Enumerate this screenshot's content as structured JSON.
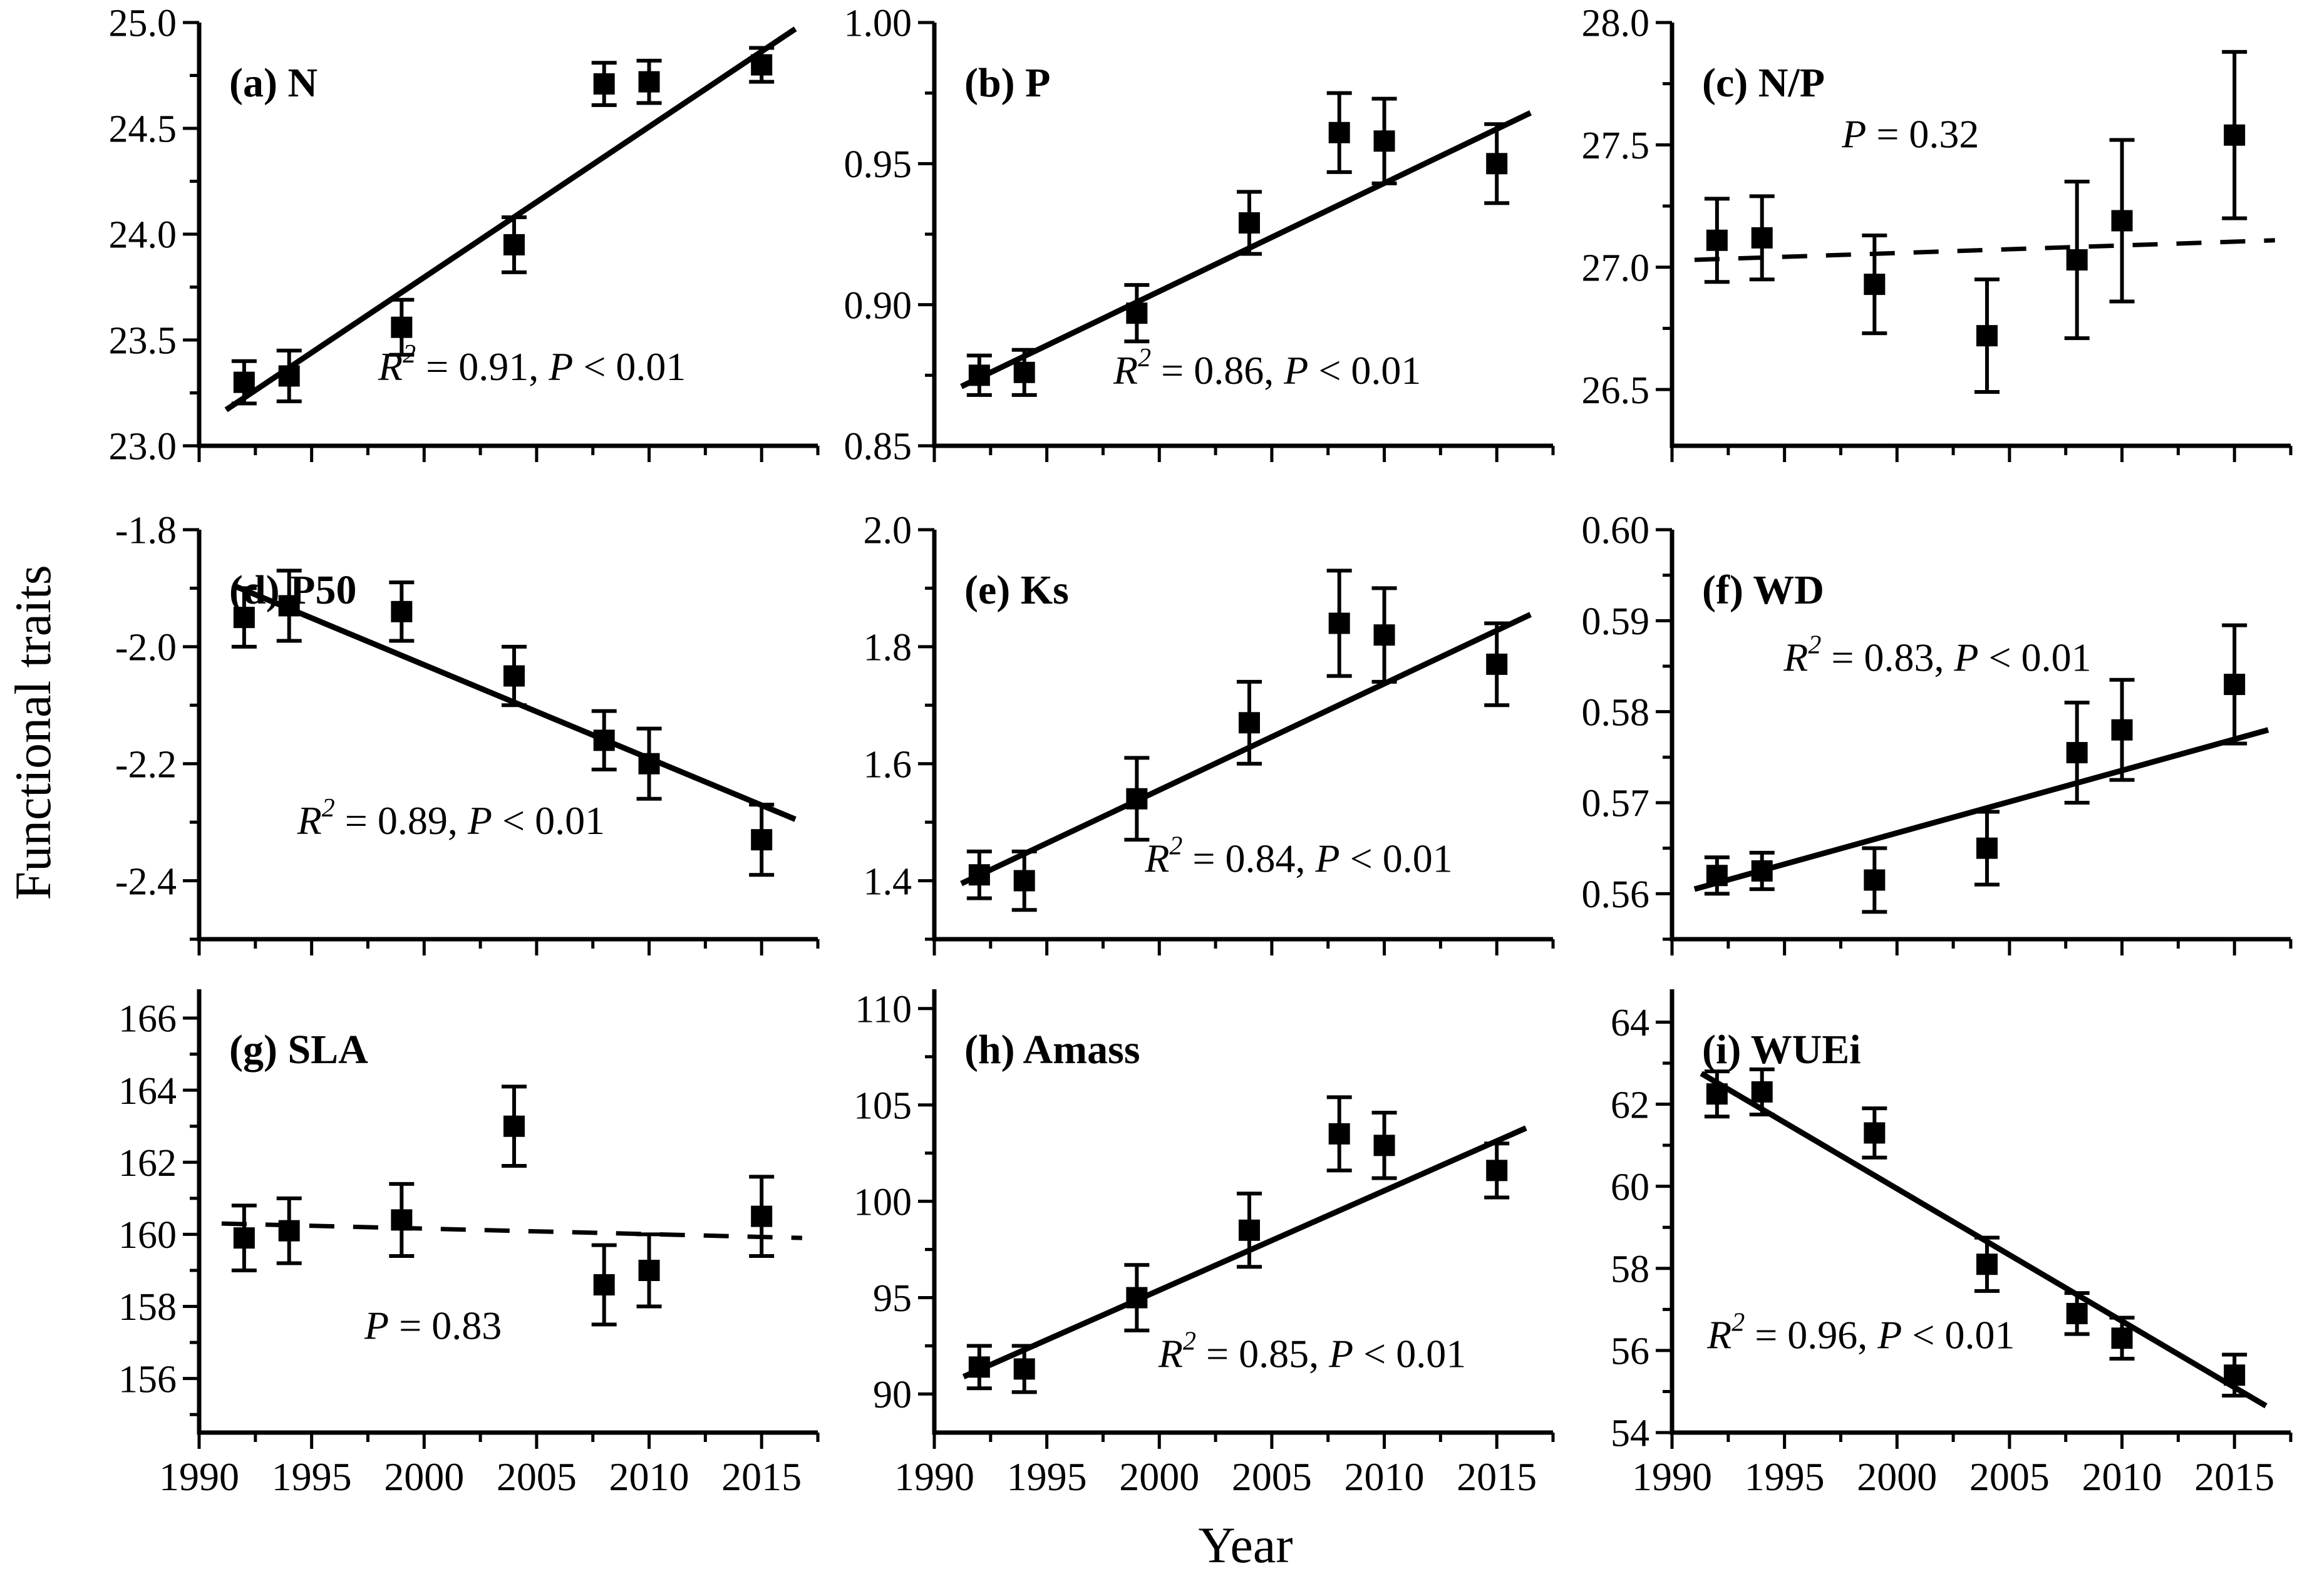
{
  "figure": {
    "y_title": "Functional traits",
    "x_title": "Year"
  },
  "chart_data": {
    "type": "scatter",
    "description": "3x3 grid of functional trait trends over years with mean ± SE error bars and linear regression lines (dashed when non-significant)",
    "x_axis": {
      "title": "Year",
      "lim": [
        1990,
        2017.5
      ],
      "major_ticks": [
        1990,
        1995,
        2000,
        2005,
        2010,
        2015
      ],
      "tick_labels": [
        "1990",
        "1995",
        "2000",
        "2005",
        "2010",
        "2015"
      ],
      "minor_ticks": [
        1992.5,
        1997.5,
        2002.5,
        2007.5,
        2012.5,
        2017.5
      ],
      "years": [
        1992,
        1994,
        1999,
        2004,
        2008,
        2010,
        2015
      ]
    },
    "marker": "filled-square",
    "colors": {
      "foreground": "#000000",
      "background": "#ffffff"
    },
    "panels": [
      {
        "id": "a",
        "label": "(a)  N",
        "y_axis": {
          "lim": [
            23.0,
            25.0
          ],
          "ticks": [
            23.0,
            23.5,
            24.0,
            24.5,
            25.0
          ],
          "tick_labels": [
            "23.0",
            "23.5",
            "24.0",
            "24.5",
            "25.0"
          ],
          "minor_step": 0.25
        },
        "points": {
          "years": [
            1992,
            1994,
            1999,
            2004,
            2008,
            2010,
            2015
          ],
          "values": [
            23.3,
            23.33,
            23.56,
            23.95,
            24.71,
            24.72,
            24.8
          ],
          "errors": [
            0.1,
            0.12,
            0.13,
            0.13,
            0.1,
            0.1,
            0.08
          ]
        },
        "trend": {
          "style": "solid",
          "x1": 1991.2,
          "y1": 23.17,
          "x2": 2016.5,
          "y2": 24.97
        },
        "stats": {
          "text": "R2 = 0.91, P < 0.01",
          "x": 2004.8,
          "y": 23.31,
          "parts": [
            {
              "t": "R",
              "i": true
            },
            {
              "t": "2",
              "i": true,
              "sup": true
            },
            {
              "t": " = 0.91, ",
              "i": false
            },
            {
              "t": "P",
              "i": true
            },
            {
              "t": " < 0.01",
              "i": false
            }
          ]
        }
      },
      {
        "id": "b",
        "label": "(b)  P",
        "y_axis": {
          "lim": [
            0.85,
            1.0
          ],
          "ticks": [
            0.85,
            0.9,
            0.95,
            1.0
          ],
          "tick_labels": [
            "0.85",
            "0.90",
            "0.95",
            "1.00"
          ],
          "minor_step": 0.025
        },
        "points": {
          "years": [
            1992,
            1994,
            1999,
            2004,
            2008,
            2010,
            2015
          ],
          "values": [
            0.875,
            0.876,
            0.897,
            0.929,
            0.961,
            0.958,
            0.95
          ],
          "errors": [
            0.007,
            0.008,
            0.01,
            0.011,
            0.014,
            0.015,
            0.014
          ]
        },
        "trend": {
          "style": "solid",
          "x1": 1991.2,
          "y1": 0.871,
          "x2": 2016.5,
          "y2": 0.968
        },
        "stats": {
          "text": "R2 = 0.86, P < 0.01",
          "x": 2004.8,
          "y": 0.872,
          "parts": [
            {
              "t": "R",
              "i": true
            },
            {
              "t": "2",
              "i": true,
              "sup": true
            },
            {
              "t": " = 0.86, ",
              "i": false
            },
            {
              "t": "P",
              "i": true
            },
            {
              "t": " < 0.01",
              "i": false
            }
          ]
        }
      },
      {
        "id": "c",
        "label": "(c)  N/P",
        "y_axis": {
          "lim": [
            26.27,
            28.0
          ],
          "ticks": [
            26.5,
            27.0,
            27.5,
            28.0
          ],
          "tick_labels": [
            "26.5",
            "27.0",
            "27.5",
            "28.0"
          ],
          "minor_step": 0.25
        },
        "points": {
          "years": [
            1992,
            1994,
            1999,
            2004,
            2008,
            2010,
            2015
          ],
          "values": [
            27.11,
            27.12,
            26.93,
            26.72,
            27.03,
            27.19,
            27.54
          ],
          "errors": [
            0.17,
            0.17,
            0.2,
            0.23,
            0.32,
            0.33,
            0.34
          ]
        },
        "trend": {
          "style": "dashed",
          "x1": 1991.0,
          "y1": 27.03,
          "x2": 2016.8,
          "y2": 27.11
        },
        "stats": {
          "text": "P = 0.32",
          "x": 2000.6,
          "y": 27.49,
          "parts": [
            {
              "t": "P",
              "i": true
            },
            {
              "t": " = 0.32",
              "i": false
            }
          ]
        }
      },
      {
        "id": "d",
        "label": "(d)  P50",
        "y_axis": {
          "lim": [
            -2.5,
            -1.8
          ],
          "ticks": [
            -2.4,
            -2.2,
            -2.0,
            -1.8
          ],
          "tick_labels": [
            "-2.4",
            "-2.2",
            "-2.0",
            "-1.8"
          ],
          "minor_step": 0.1
        },
        "points": {
          "years": [
            1992,
            1994,
            1999,
            2004,
            2008,
            2010,
            2015
          ],
          "values": [
            -1.95,
            -1.93,
            -1.94,
            -2.05,
            -2.16,
            -2.2,
            -2.33
          ],
          "errors": [
            0.05,
            0.06,
            0.05,
            0.05,
            0.05,
            0.06,
            0.06
          ]
        },
        "trend": {
          "style": "solid",
          "x1": 1991.5,
          "y1": -1.895,
          "x2": 2016.5,
          "y2": -2.295
        },
        "stats": {
          "text": "R2 = 0.89, P < 0.01",
          "x": 2001.2,
          "y": -2.32,
          "parts": [
            {
              "t": "R",
              "i": true
            },
            {
              "t": "2",
              "i": true,
              "sup": true
            },
            {
              "t": " = 0.89, ",
              "i": false
            },
            {
              "t": "P",
              "i": true
            },
            {
              "t": " < 0.01",
              "i": false
            }
          ]
        }
      },
      {
        "id": "e",
        "label": "(e)  Ks",
        "y_axis": {
          "lim": [
            1.3,
            2.0
          ],
          "ticks": [
            1.4,
            1.6,
            1.8,
            2.0
          ],
          "tick_labels": [
            "1.4",
            "1.6",
            "1.8",
            "2.0"
          ],
          "minor_step": 0.1
        },
        "points": {
          "years": [
            1992,
            1994,
            1999,
            2004,
            2008,
            2010,
            2015
          ],
          "values": [
            1.41,
            1.4,
            1.54,
            1.67,
            1.84,
            1.82,
            1.77
          ],
          "errors": [
            0.04,
            0.05,
            0.07,
            0.07,
            0.09,
            0.08,
            0.07
          ]
        },
        "trend": {
          "style": "solid",
          "x1": 1991.2,
          "y1": 1.395,
          "x2": 2016.5,
          "y2": 1.855
        },
        "stats": {
          "text": "R2 = 0.84, P < 0.01",
          "x": 2006.2,
          "y": 1.415,
          "parts": [
            {
              "t": "R",
              "i": true
            },
            {
              "t": "2",
              "i": true,
              "sup": true
            },
            {
              "t": " = 0.84, ",
              "i": false
            },
            {
              "t": "P",
              "i": true
            },
            {
              "t": " < 0.01",
              "i": false
            }
          ]
        }
      },
      {
        "id": "f",
        "label": "(f)  WD",
        "y_axis": {
          "lim": [
            0.555,
            0.6
          ],
          "ticks": [
            0.56,
            0.57,
            0.58,
            0.59,
            0.6
          ],
          "tick_labels": [
            "0.56",
            "0.57",
            "0.58",
            "0.59",
            "0.60"
          ],
          "minor_step": 0.005
        },
        "points": {
          "years": [
            1992,
            1994,
            1999,
            2004,
            2008,
            2010,
            2015
          ],
          "values": [
            0.562,
            0.5625,
            0.5615,
            0.565,
            0.5755,
            0.578,
            0.583
          ],
          "errors": [
            0.002,
            0.002,
            0.0035,
            0.004,
            0.0055,
            0.0055,
            0.0065
          ]
        },
        "trend": {
          "style": "solid",
          "x1": 1991.0,
          "y1": 0.5605,
          "x2": 2016.5,
          "y2": 0.578
        },
        "stats": {
          "text": "R2 = 0.83, P < 0.01",
          "x": 2001.8,
          "y": 0.5845,
          "parts": [
            {
              "t": "R",
              "i": true
            },
            {
              "t": "2",
              "i": true,
              "sup": true
            },
            {
              "t": " = 0.83, ",
              "i": false
            },
            {
              "t": "P",
              "i": true
            },
            {
              "t": " < 0.01",
              "i": false
            }
          ]
        }
      },
      {
        "id": "g",
        "label": "(g)  SLA",
        "y_axis": {
          "lim": [
            154.5,
            166.8
          ],
          "ticks": [
            156,
            158,
            160,
            162,
            164,
            166
          ],
          "tick_labels": [
            "156",
            "158",
            "160",
            "162",
            "164",
            "166"
          ],
          "minor_step": 1
        },
        "points": {
          "years": [
            1992,
            1994,
            1999,
            2004,
            2008,
            2010,
            2015
          ],
          "values": [
            159.9,
            160.1,
            160.4,
            163.0,
            158.6,
            159.0,
            160.5
          ],
          "errors": [
            0.9,
            0.9,
            1.0,
            1.1,
            1.1,
            1.0,
            1.1
          ]
        },
        "trend": {
          "style": "dashed",
          "x1": 1991.0,
          "y1": 160.3,
          "x2": 2016.8,
          "y2": 159.9
        },
        "stats": {
          "text": "P = 0.83",
          "x": 2000.4,
          "y": 157.1,
          "parts": [
            {
              "t": "P",
              "i": true
            },
            {
              "t": " = 0.83",
              "i": false
            }
          ]
        }
      },
      {
        "id": "h",
        "label": "(h)  Amass",
        "y_axis": {
          "lim": [
            88,
            111
          ],
          "ticks": [
            90,
            95,
            100,
            105,
            110
          ],
          "tick_labels": [
            "90",
            "95",
            "100",
            "105",
            "110"
          ],
          "minor_step": 2.5
        },
        "points": {
          "years": [
            1992,
            1994,
            1999,
            2004,
            2008,
            2010,
            2015
          ],
          "values": [
            91.4,
            91.3,
            95.0,
            98.5,
            103.5,
            102.9,
            101.6
          ],
          "errors": [
            1.1,
            1.2,
            1.7,
            1.9,
            1.9,
            1.7,
            1.4
          ]
        },
        "trend": {
          "style": "solid",
          "x1": 1991.3,
          "y1": 90.9,
          "x2": 2016.3,
          "y2": 103.8
        },
        "stats": {
          "text": "R2 = 0.85, P < 0.01",
          "x": 2006.8,
          "y": 91.4,
          "parts": [
            {
              "t": "R",
              "i": true
            },
            {
              "t": "2",
              "i": true,
              "sup": true
            },
            {
              "t": " = 0.85, ",
              "i": false
            },
            {
              "t": "P",
              "i": true
            },
            {
              "t": " < 0.01",
              "i": false
            }
          ]
        }
      },
      {
        "id": "i",
        "label": "(i)  WUEi",
        "y_axis": {
          "lim": [
            54,
            64.8
          ],
          "ticks": [
            54,
            56,
            58,
            60,
            62,
            64
          ],
          "tick_labels": [
            "54",
            "56",
            "58",
            "60",
            "62",
            "64"
          ],
          "minor_step": 1
        },
        "points": {
          "years": [
            1992,
            1994,
            1999,
            2004,
            2008,
            2010,
            2015
          ],
          "values": [
            62.25,
            62.3,
            61.3,
            58.1,
            56.9,
            56.3,
            55.4
          ],
          "errors": [
            0.55,
            0.55,
            0.6,
            0.65,
            0.5,
            0.5,
            0.5
          ]
        },
        "trend": {
          "style": "solid",
          "x1": 1991.3,
          "y1": 62.75,
          "x2": 2016.4,
          "y2": 54.65
        },
        "stats": {
          "text": "R2 = 0.96, P < 0.01",
          "x": 1998.4,
          "y": 56.05,
          "parts": [
            {
              "t": "R",
              "i": true
            },
            {
              "t": "2",
              "i": true,
              "sup": true
            },
            {
              "t": " = 0.96, ",
              "i": false
            },
            {
              "t": "P",
              "i": true
            },
            {
              "t": " < 0.01",
              "i": false
            }
          ]
        }
      }
    ]
  }
}
